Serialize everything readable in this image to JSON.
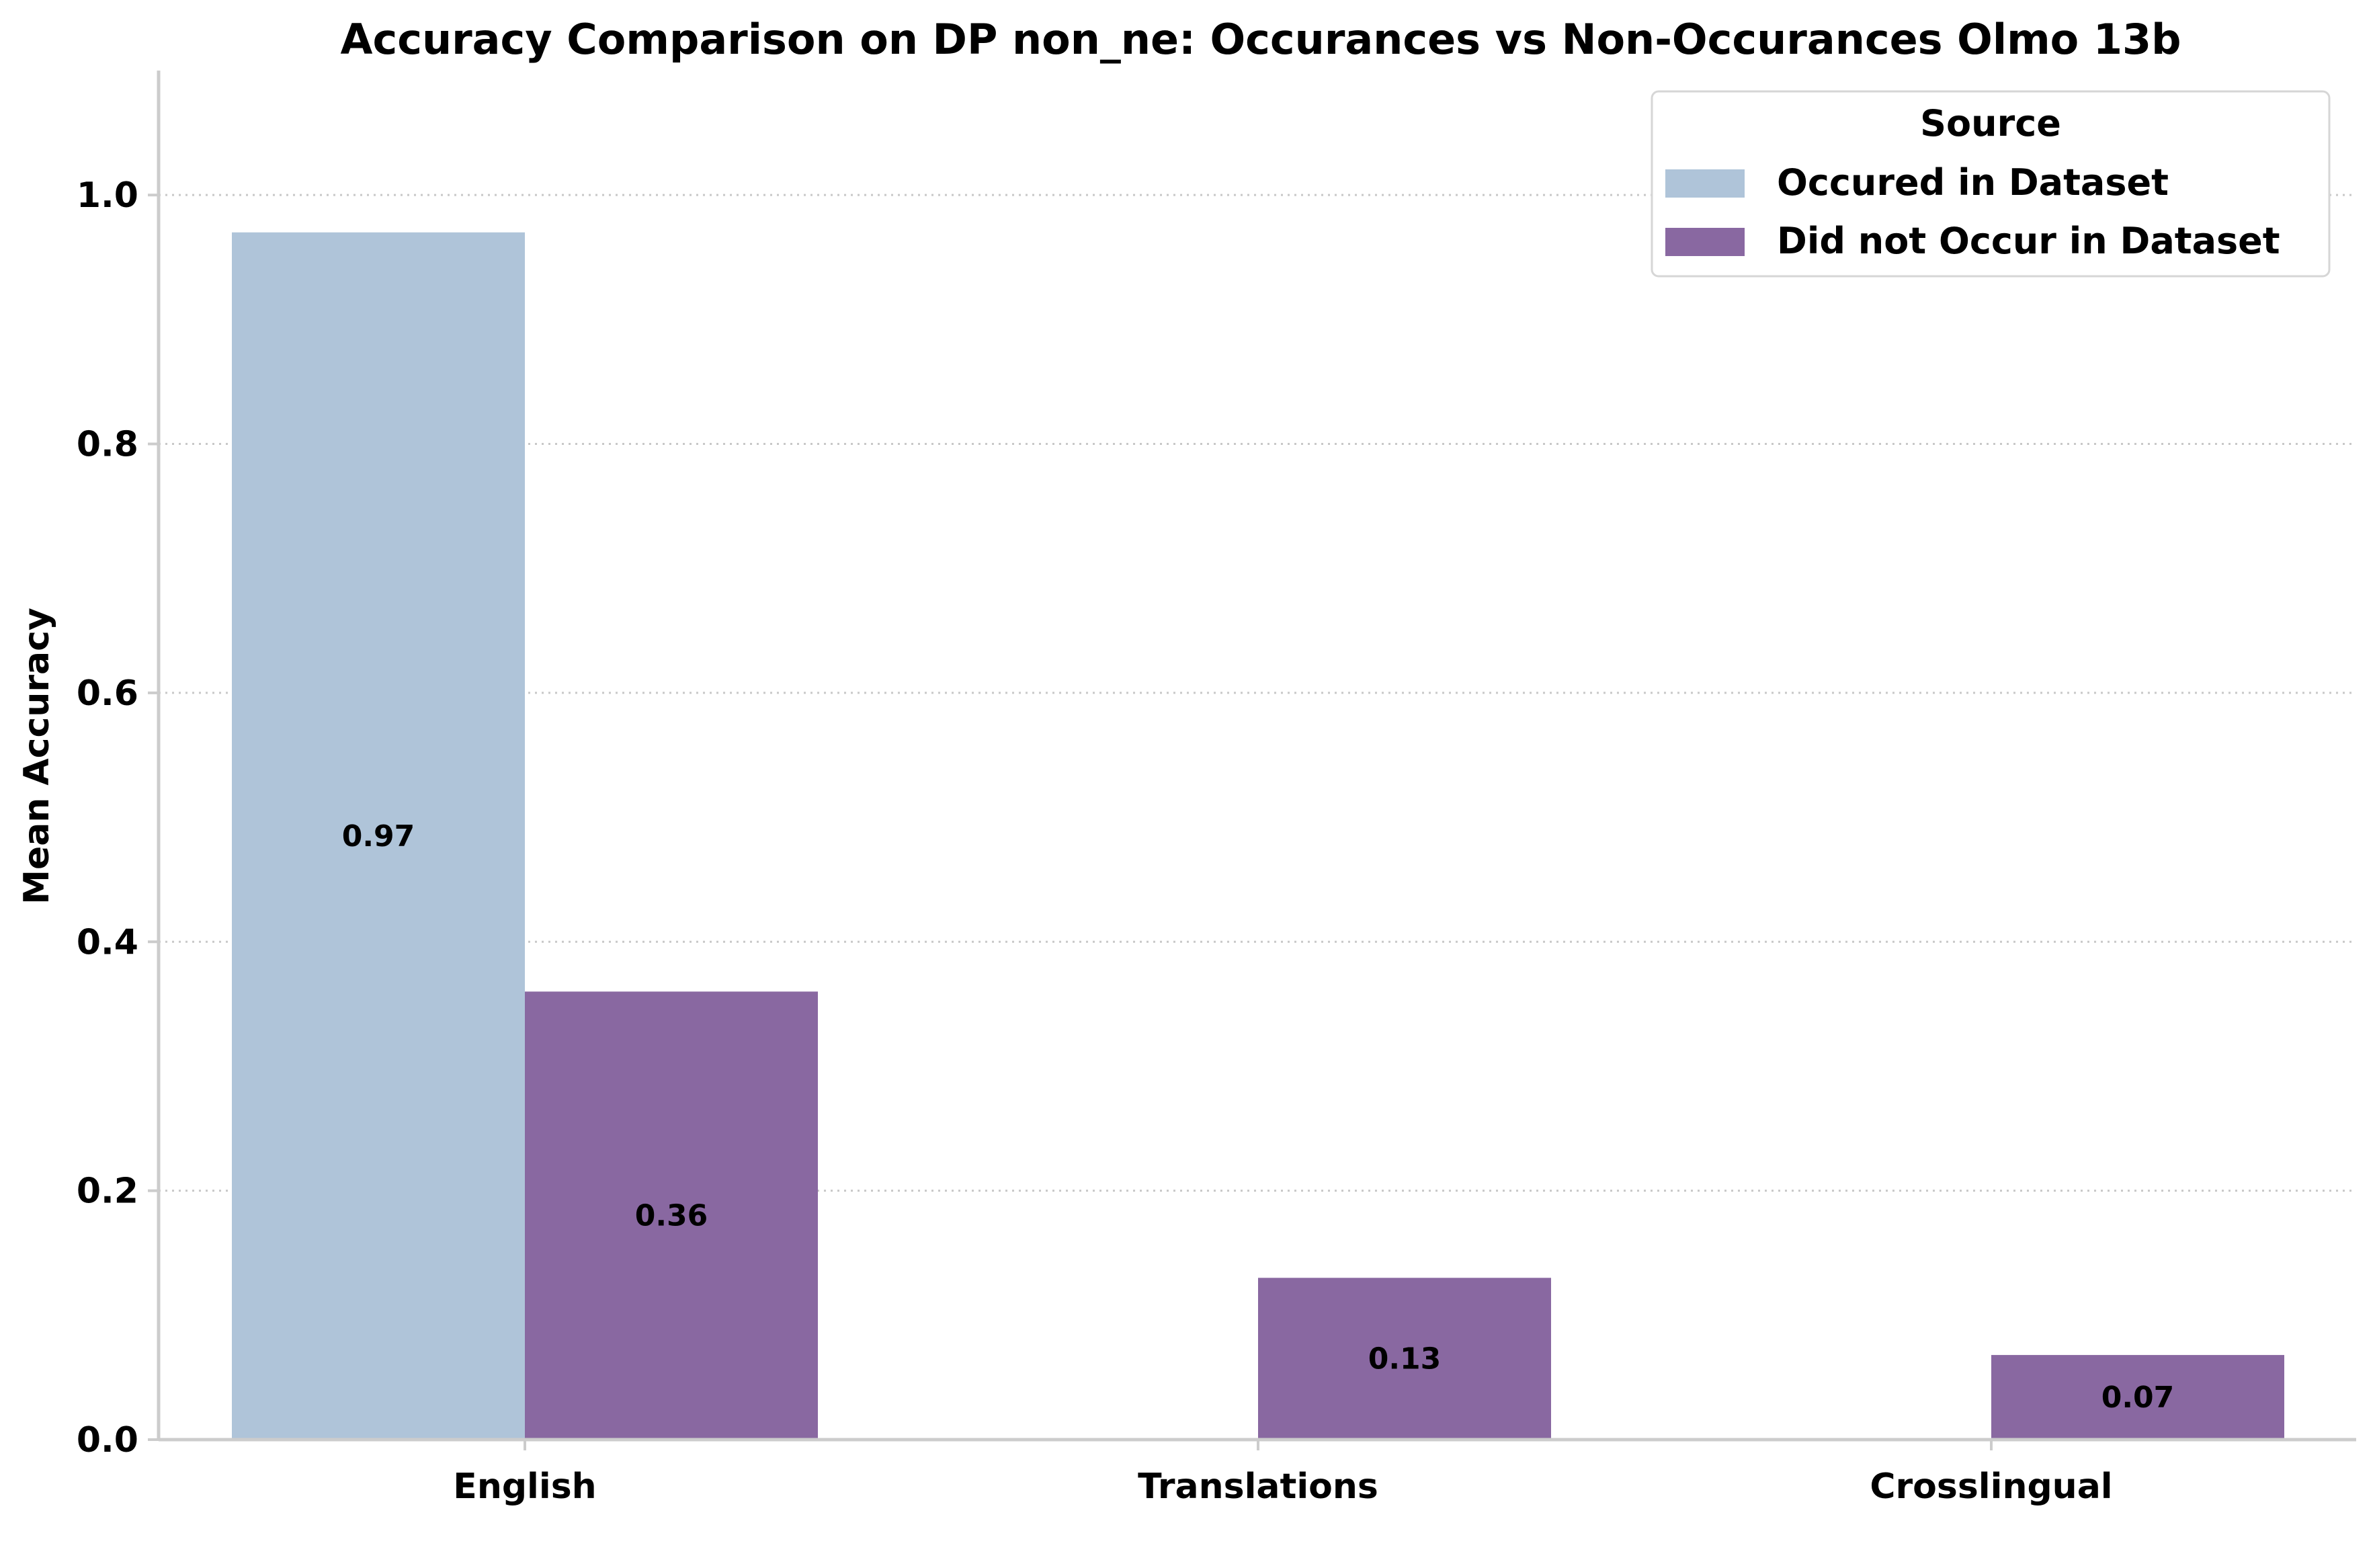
{
  "chart_data": {
    "type": "bar",
    "title": "Accuracy Comparison on DP non_ne: Occurances vs Non-Occurances Olmo 13b",
    "xlabel": "",
    "ylabel": "Mean Accuracy",
    "categories": [
      "English",
      "Translations",
      "Crosslingual"
    ],
    "series": [
      {
        "name": "Occured in Dataset",
        "values": [
          0.97,
          null,
          null
        ],
        "labels": [
          "0.97",
          "",
          ""
        ],
        "color": "#afc4d9"
      },
      {
        "name": "Did not Occur in Dataset",
        "values": [
          0.36,
          0.13,
          0.068
        ],
        "labels": [
          "0.36",
          "0.13",
          "0.07"
        ],
        "color": "#8968a1"
      }
    ],
    "ylim": [
      0,
      1.1
    ],
    "yticks": [
      0.0,
      0.2,
      0.4,
      0.6,
      0.8,
      1.0
    ],
    "ytick_labels": [
      "0.0",
      "0.2",
      "0.4",
      "0.6",
      "0.8",
      "1.0"
    ],
    "grid": "y dotted",
    "legend": {
      "title": "Source",
      "placement": "top-right"
    }
  }
}
